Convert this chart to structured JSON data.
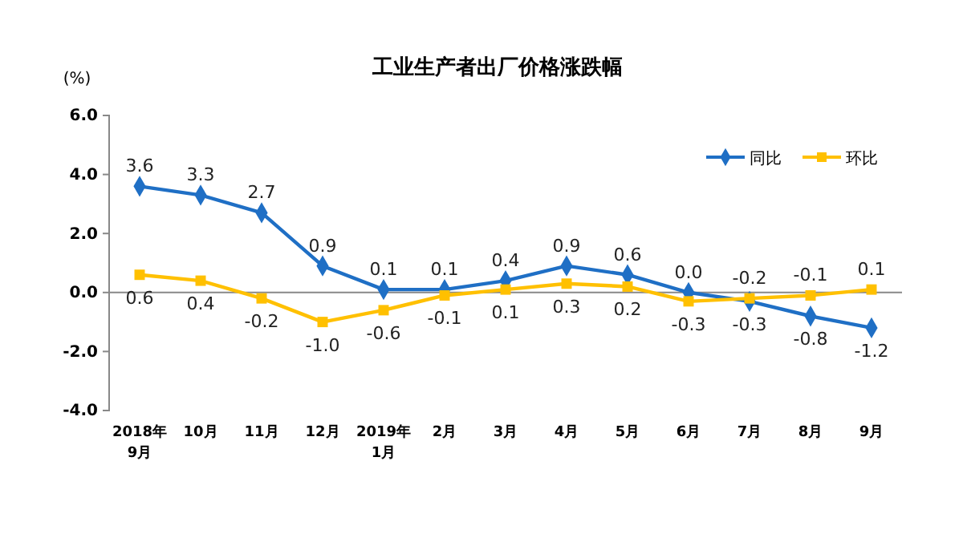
{
  "chart_data": {
    "type": "line",
    "title": "工业生产者出厂价格涨跌幅",
    "ylabel": "(%)",
    "categories": [
      "2018年\n9月",
      "10月",
      "11月",
      "12月",
      "2019年\n1月",
      "2月",
      "3月",
      "4月",
      "5月",
      "6月",
      "7月",
      "8月",
      "9月"
    ],
    "series": [
      {
        "name": "同比",
        "color": "#1f6fc5",
        "marker": "diamond",
        "values": [
          3.6,
          3.3,
          2.7,
          0.9,
          0.1,
          0.1,
          0.4,
          0.9,
          0.6,
          0.0,
          -0.3,
          -0.8,
          -1.2
        ],
        "value_labels": [
          "3.6",
          "3.3",
          "2.7",
          "0.9",
          "0.1",
          "0.1",
          "0.4",
          "0.9",
          "0.6",
          "0.0",
          "-0.3",
          "-0.8",
          "-1.2"
        ]
      },
      {
        "name": "环比",
        "color": "#ffc000",
        "marker": "square",
        "values": [
          0.6,
          0.4,
          -0.2,
          -1.0,
          -0.6,
          -0.1,
          0.1,
          0.3,
          0.2,
          -0.3,
          -0.2,
          -0.1,
          0.1
        ],
        "value_labels": [
          "0.6",
          "0.4",
          "-0.2",
          "-1.0",
          "-0.6",
          "-0.1",
          "0.1",
          "0.3",
          "0.2",
          "-0.3",
          "-0.2",
          "-0.1",
          "0.1"
        ]
      }
    ],
    "ylim": [
      -4,
      6
    ],
    "yticks": [
      {
        "value": -4,
        "label": "-4.0"
      },
      {
        "value": -2,
        "label": "-2.0"
      },
      {
        "value": 0,
        "label": "0.0"
      },
      {
        "value": 2,
        "label": "2.0"
      },
      {
        "value": 4,
        "label": "4.0"
      },
      {
        "value": 6,
        "label": "6.0"
      }
    ],
    "legend": "top right"
  }
}
